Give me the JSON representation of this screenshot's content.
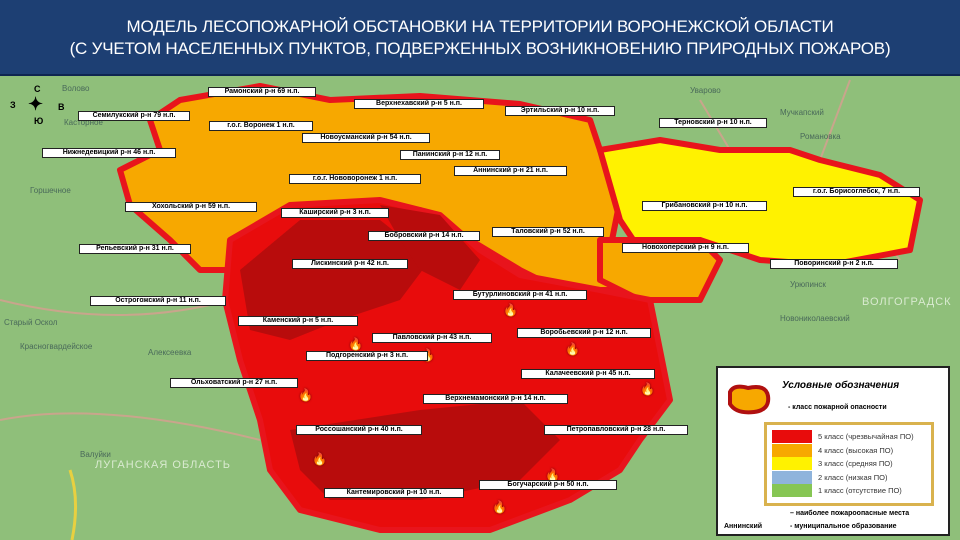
{
  "header": {
    "line1": "МОДЕЛЬ ЛЕСОПОЖАРНОЙ ОБСТАНОВКИ НА ТЕРРИТОРИИ ВОРОНЕЖСКОЙ ОБЛАСТИ",
    "line2": "(С УЧЕТОМ НАСЕЛЕННЫХ ПУНКТОВ, ПОДВЕРЖЕННЫХ ВОЗНИКНОВЕНИЮ ПРИРОДНЫХ ПОЖАРОВ)"
  },
  "compass": {
    "n": "С",
    "s": "Ю",
    "w": "З",
    "e": "В"
  },
  "colors": {
    "class5": "#e80c0c",
    "class4": "#f7a800",
    "class3": "#fff200",
    "class2": "#8fb4dc",
    "class1": "#86c654",
    "dark_red": "#b80c0c",
    "border": "#e8141c",
    "header": "#1d3f73"
  },
  "districts": [
    {
      "name": "Рамонский р-н 69 н.п.",
      "class": 4
    },
    {
      "name": "Семилукский р-н 79 н.п.",
      "class": 4
    },
    {
      "name": "Нижнедевицкий р-н 46 н.п.",
      "class": 4
    },
    {
      "name": "г.о.г. Воронеж   1 н.п.",
      "class": 4
    },
    {
      "name": "Верхнехавский р-н   5 н.п.",
      "class": 4
    },
    {
      "name": "Эртильский р-н 10 н.п.",
      "class": 4
    },
    {
      "name": "Новоусманский р-н 54 н.п.",
      "class": 4
    },
    {
      "name": "Панинский р-н 12 н.п.",
      "class": 4
    },
    {
      "name": "Аннинский р-н 21 н.п.",
      "class": 4
    },
    {
      "name": "Терновский р-н 10 н.п.",
      "class": 3
    },
    {
      "name": "г.о.г. Нововоронеж   1 н.п.",
      "class": 4
    },
    {
      "name": "Хохольский р-н 59 н.п.",
      "class": 4
    },
    {
      "name": "Каширский р-н 3 н.п.",
      "class": 5
    },
    {
      "name": "Бобровский р-н 14 н.п.",
      "class": 5
    },
    {
      "name": "Таловский р-н 52 н.п.",
      "class": 4
    },
    {
      "name": "Грибановский р-н 10 н.п.",
      "class": 3
    },
    {
      "name": "г.о.г. Борисоглебск, 7 н.п.",
      "class": 3
    },
    {
      "name": "Репьевский р-н 31 н.п.",
      "class": 4
    },
    {
      "name": "Лискинский р-н 42 н.п.",
      "class": 5
    },
    {
      "name": "Новохоперский р-н 9 н.п.",
      "class": 4
    },
    {
      "name": "Поворинский р-н 2 н.п.",
      "class": 3
    },
    {
      "name": "Острогожский р-н 11 н.п.",
      "class": 5
    },
    {
      "name": "Бутурлиновский р-н 41 н.п.",
      "class": 5
    },
    {
      "name": "Каменский р-н 5 н.п.",
      "class": 5
    },
    {
      "name": "Павловский р-н 43 н.п.",
      "class": 5
    },
    {
      "name": "Воробьевский р-н 12 н.п.",
      "class": 5
    },
    {
      "name": "Подгоренский р-н 3 н.п.",
      "class": 5
    },
    {
      "name": "Калачеевский р-н 45 н.п.",
      "class": 5
    },
    {
      "name": "Ольховатский р-н 27 н.п.",
      "class": 5
    },
    {
      "name": "Верхнемамонский р-н 14 н.п.",
      "class": 5
    },
    {
      "name": "Россошанский р-н 40 н.п.",
      "class": 5
    },
    {
      "name": "Петропавловский р-н 28 н.п.",
      "class": 5
    },
    {
      "name": "Кантемировский р-н 10 н.п.",
      "class": 5
    },
    {
      "name": "Богучарский р-н 50 н.п.",
      "class": 5
    }
  ],
  "places": [
    "Волово",
    "Касторное",
    "Горшечное",
    "Старый Оскол",
    "Красногвардейское",
    "Алексеевка",
    "Валуйки",
    "Уварово",
    "Мучкапский",
    "Романовка",
    "Новониколаевский",
    "Урюпинск",
    "ЛУГАНСКАЯ ОБЛАСТЬ",
    "ВОЛГОГРАДСК"
  ],
  "legend": {
    "title": "Условные обозначения",
    "class_label": "- класс пожарной опасности",
    "classes": [
      {
        "label": "5 класс (чрезвычайная ПО)",
        "color": "#e80c0c"
      },
      {
        "label": "4 класс (высокая ПО)",
        "color": "#f7a800"
      },
      {
        "label": "3 класс (средняя ПО)",
        "color": "#fff200"
      },
      {
        "label": "2 класс (низкая ПО)",
        "color": "#8fb4dc"
      },
      {
        "label": "1 класс (отсутствие ПО)",
        "color": "#86c654"
      }
    ],
    "fires_label": "– наиболее пожароопасные   места",
    "muni_example": "Аннинский",
    "muni_label": "- муниципальное образование"
  }
}
